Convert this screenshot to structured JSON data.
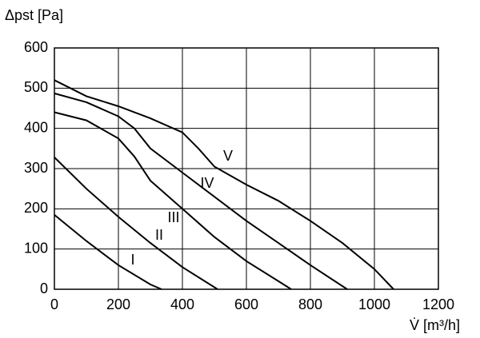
{
  "chart_data": {
    "type": "line",
    "ylabel": "Δpst [Pa]",
    "xlabel": "V̇ [m³/h]",
    "xlim": [
      0,
      1200
    ],
    "xticks": [
      0,
      200,
      400,
      600,
      800,
      1000,
      1200
    ],
    "ylim": [
      0,
      600
    ],
    "yticks": [
      0,
      100,
      200,
      300,
      400,
      500,
      600
    ],
    "grid": true,
    "series": [
      {
        "name": "I",
        "color": "#000000",
        "x": [
          0,
          100,
          200,
          300,
          335
        ],
        "values": [
          185,
          120,
          60,
          12,
          0
        ]
      },
      {
        "name": "II",
        "color": "#000000",
        "x": [
          0,
          100,
          200,
          300,
          400,
          510
        ],
        "values": [
          328,
          250,
          180,
          115,
          55,
          0
        ]
      },
      {
        "name": "III",
        "color": "#000000",
        "x": [
          0,
          100,
          200,
          250,
          300,
          400,
          500,
          600,
          700,
          740
        ],
        "values": [
          440,
          420,
          375,
          330,
          270,
          200,
          130,
          70,
          20,
          0
        ]
      },
      {
        "name": "IV",
        "color": "#000000",
        "x": [
          0,
          100,
          200,
          250,
          300,
          400,
          500,
          600,
          700,
          800,
          915
        ],
        "values": [
          487,
          465,
          430,
          400,
          350,
          290,
          230,
          170,
          115,
          60,
          0
        ]
      },
      {
        "name": "V",
        "color": "#000000",
        "x": [
          0,
          100,
          200,
          300,
          400,
          450,
          500,
          600,
          700,
          800,
          900,
          1000,
          1060
        ],
        "values": [
          520,
          480,
          455,
          425,
          390,
          350,
          305,
          260,
          220,
          170,
          115,
          50,
          0
        ]
      }
    ]
  }
}
